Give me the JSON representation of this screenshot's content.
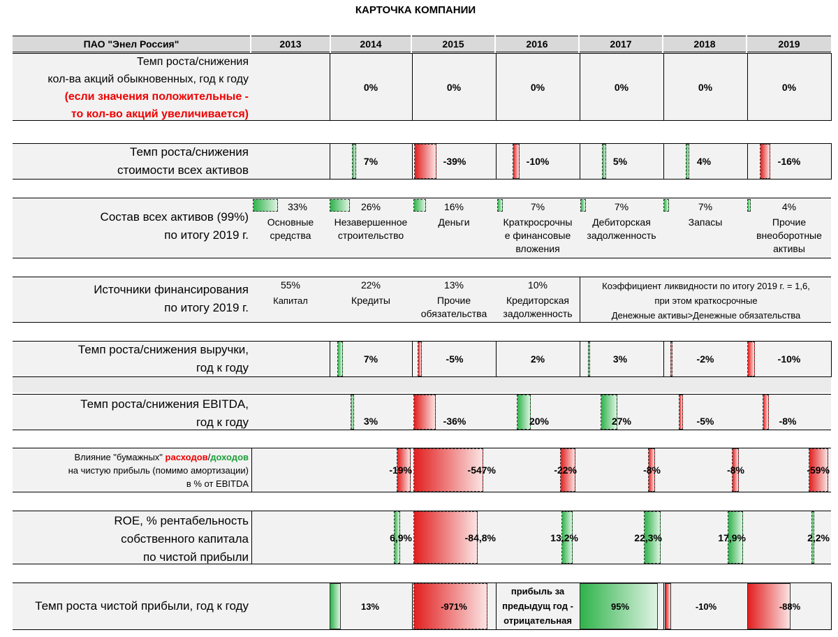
{
  "title": "КАРТОЧКА КОМПАНИИ",
  "company": "ПАО \"Энел Россия\"",
  "years": [
    "2013",
    "2014",
    "2015",
    "2016",
    "2017",
    "2018",
    "2019"
  ],
  "shares": {
    "label_line1": "Темп роста/снижения",
    "label_line2": "кол-ва акций обыкновенных,  год к году",
    "note_line1": "(если значения положительные -",
    "note_line2": "то кол-во акций увеличивается)",
    "values": [
      "0%",
      "0%",
      "0%",
      "0%",
      "0%",
      "0%"
    ]
  },
  "assets_growth": {
    "label_line1": "Темп роста/снижения",
    "label_line2": "стоимости всех активов",
    "values": [
      "7%",
      "-39%",
      "-10%",
      "5%",
      "4%",
      "-16%"
    ],
    "fractions": [
      0.07,
      -0.39,
      -0.1,
      0.05,
      0.04,
      -0.16
    ]
  },
  "assets_structure": {
    "label_line1": "Состав всех активов (99%)",
    "label_line2": "по итогу 2019 г.",
    "items": [
      {
        "pct": "33%",
        "fraction": 0.33,
        "name1": "Основные",
        "name2": "средства",
        "name3": ""
      },
      {
        "pct": "26%",
        "fraction": 0.26,
        "name1": "Незавершенное",
        "name2": "строительство",
        "name3": ""
      },
      {
        "pct": "16%",
        "fraction": 0.16,
        "name1": "Деньги",
        "name2": "",
        "name3": ""
      },
      {
        "pct": "7%",
        "fraction": 0.07,
        "name1": "Краткросрочны",
        "name2": "е финансовые",
        "name3": "вложения"
      },
      {
        "pct": "7%",
        "fraction": 0.07,
        "name1": "Дебиторская",
        "name2": "задолженность",
        "name3": ""
      },
      {
        "pct": "7%",
        "fraction": 0.07,
        "name1": "Запасы",
        "name2": "",
        "name3": ""
      },
      {
        "pct": "4%",
        "fraction": 0.04,
        "name1": "Прочие",
        "name2": "внеоборотные",
        "name3": "активы"
      }
    ]
  },
  "financing": {
    "label_line1": "Источники финансирования",
    "label_line2": "по итогу 2019 г.",
    "items": [
      {
        "pct": "55%",
        "name1": "Капитал",
        "name2": ""
      },
      {
        "pct": "22%",
        "name1": "Кредиты",
        "name2": ""
      },
      {
        "pct": "13%",
        "name1": "Прочие",
        "name2": "обязательства"
      },
      {
        "pct": "10%",
        "name1": "Кредиторская",
        "name2": "задолженность"
      }
    ],
    "note_line1": "Коэффициент ликвидности по итогу 2019 г. = 1,6,",
    "note_line2": "при этом краткосрочные",
    "note_line3": "Денежные активы>Денежные обязательства"
  },
  "revenue": {
    "label_line1": "Темп роста/снижения выручки,",
    "label_line2": "год к году",
    "values": [
      "7%",
      "-5%",
      "2%",
      "3%",
      "-2%",
      "-10%"
    ],
    "fractions": [
      0.07,
      -0.05,
      0.02,
      0.03,
      -0.02,
      -0.1
    ]
  },
  "ebitda": {
    "label_line1": "Темп роста/снижения EBITDA,",
    "label_line2": "год к году",
    "values": [
      "3%",
      "-36%",
      "20%",
      "27%",
      "-5%",
      "-8%"
    ],
    "fractions": [
      0.03,
      -0.36,
      0.2,
      0.27,
      -0.05,
      -0.08
    ]
  },
  "paper": {
    "label_part1": "Влияние \"бумажных\" ",
    "label_expenses": "расходов",
    "label_slash": "/",
    "label_income": "доходов",
    "label_line2": "на чистую прибыль (помимо амортизации)",
    "label_line3": "в % от EBITDA",
    "values": [
      "-19%",
      "-547%",
      "-22%",
      "-8%",
      "-8%",
      "-59%"
    ],
    "fractions": [
      -0.19,
      -5.47,
      -0.22,
      -0.08,
      -0.08,
      -0.59
    ]
  },
  "roe": {
    "label_line1": "ROE, % рентабельность",
    "label_line2": "собственного капитала",
    "label_line3": "по чистой прибыли",
    "values": [
      "6,9%",
      "-84,8%",
      "13,2%",
      "22,3%",
      "17,9%",
      "2,2%"
    ],
    "fractions": [
      0.069,
      -0.848,
      0.132,
      0.223,
      0.179,
      0.022
    ]
  },
  "net_profit": {
    "label": "Темп роста чистой прибыли, год к году",
    "values": [
      "13%",
      "-971%",
      "",
      "95%",
      "-10%",
      "-88%"
    ],
    "fractions": [
      0.13,
      -9.71,
      0,
      0.95,
      -0.1,
      -0.88
    ],
    "note_line1": "прибыль за",
    "note_line2": "предыдущ год -",
    "note_line3": "отрицательная"
  }
}
